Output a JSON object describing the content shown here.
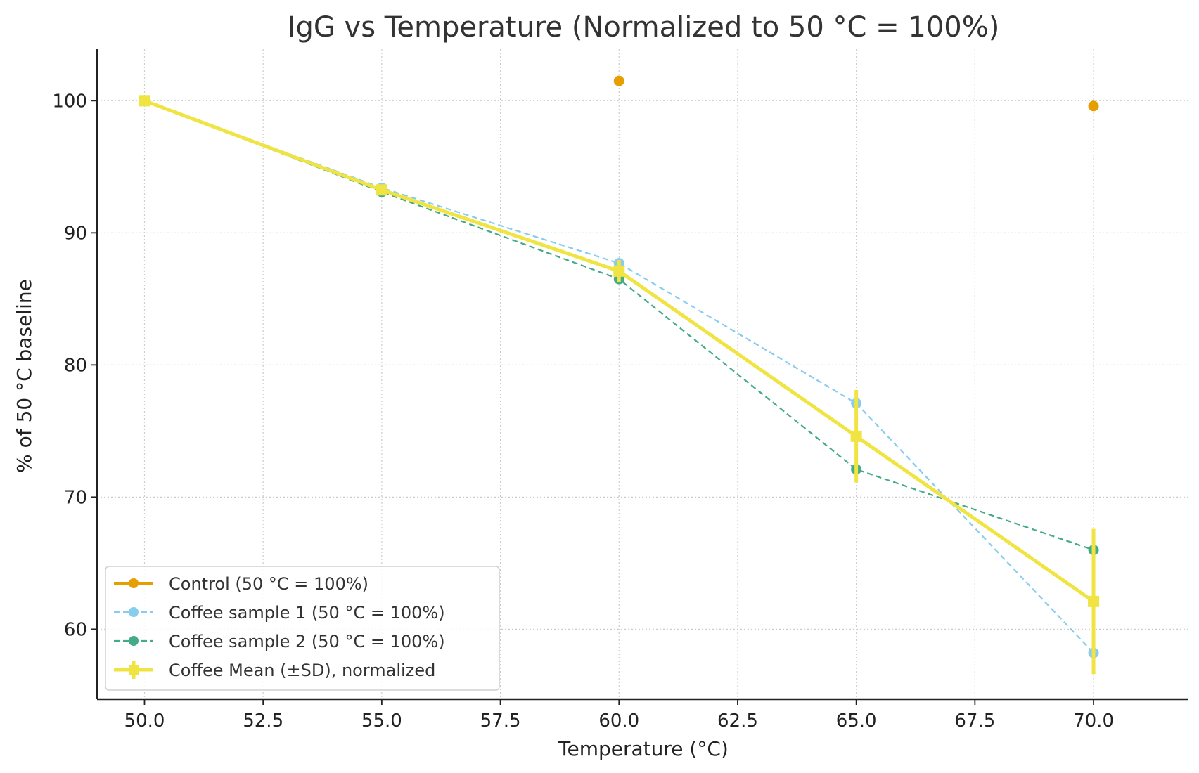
{
  "chart_data": {
    "type": "line",
    "title": "IgG vs Temperature (Normalized to 50 °C = 100%)",
    "xlabel": "Temperature (°C)",
    "ylabel": "% of 50 °C baseline",
    "xlim": [
      49.0,
      72.0
    ],
    "ylim": [
      54.7,
      103.9
    ],
    "x_ticks": [
      50.0,
      52.5,
      55.0,
      57.5,
      60.0,
      62.5,
      65.0,
      67.5,
      70.0
    ],
    "x_tick_labels": [
      "50.0",
      "52.5",
      "55.0",
      "57.5",
      "60.0",
      "62.5",
      "65.0",
      "67.5",
      "70.0"
    ],
    "y_ticks": [
      60,
      70,
      80,
      90,
      100
    ],
    "y_tick_labels": [
      "60",
      "70",
      "80",
      "90",
      "100"
    ],
    "grid": true,
    "legend_position": "lower-left",
    "series": [
      {
        "name": "Control (50 °C = 100%)",
        "color": "#E69F00",
        "style": "solid",
        "marker": "circle",
        "x": [
          60.0,
          70.0
        ],
        "values": [
          101.5,
          99.6
        ],
        "connected": false
      },
      {
        "name": "Coffee sample 1 (50 °C = 100%)",
        "color": "#88CCEE",
        "style": "dashed",
        "marker": "circle",
        "x": [
          50.0,
          55.0,
          60.0,
          65.0,
          70.0
        ],
        "values": [
          100.0,
          93.4,
          87.7,
          77.1,
          58.2
        ]
      },
      {
        "name": "Coffee sample 2 (50 °C = 100%)",
        "color": "#44AA88",
        "style": "dashed",
        "marker": "circle",
        "x": [
          50.0,
          55.0,
          60.0,
          65.0,
          70.0
        ],
        "values": [
          100.0,
          93.1,
          86.5,
          72.1,
          66.0
        ]
      },
      {
        "name": "Coffee Mean (±SD), normalized",
        "color": "#F0E442",
        "style": "solid",
        "marker": "square",
        "x": [
          50.0,
          55.0,
          60.0,
          65.0,
          70.0
        ],
        "values": [
          100.0,
          93.25,
          87.1,
          74.6,
          62.1
        ],
        "sd": [
          0.0,
          0.2,
          0.85,
          3.5,
          5.5
        ]
      }
    ]
  }
}
